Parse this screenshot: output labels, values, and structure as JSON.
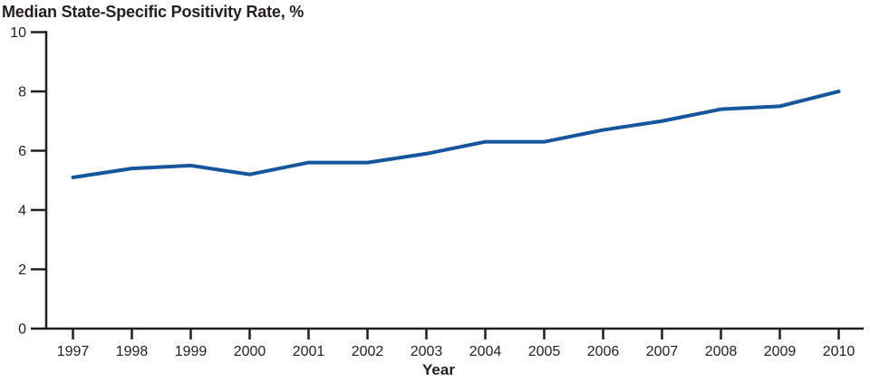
{
  "chart_data": {
    "type": "line",
    "title": "Median State-Specific Positivity Rate, %",
    "xlabel": "Year",
    "ylabel": "",
    "x": [
      1997,
      1998,
      1999,
      2000,
      2001,
      2002,
      2003,
      2004,
      2005,
      2006,
      2007,
      2008,
      2009,
      2010
    ],
    "series": [
      {
        "name": "Median state-specific positivity rate (%)",
        "values": [
          5.1,
          5.4,
          5.5,
          5.2,
          5.6,
          5.6,
          5.9,
          6.3,
          6.3,
          6.7,
          7.0,
          7.4,
          7.5,
          8.0
        ]
      }
    ],
    "ylim": [
      0,
      10
    ],
    "yticks": [
      0,
      2,
      4,
      6,
      8,
      10
    ],
    "grid": false,
    "legend": "none",
    "line_color": "#15569e",
    "axis_color": "#231f20"
  }
}
